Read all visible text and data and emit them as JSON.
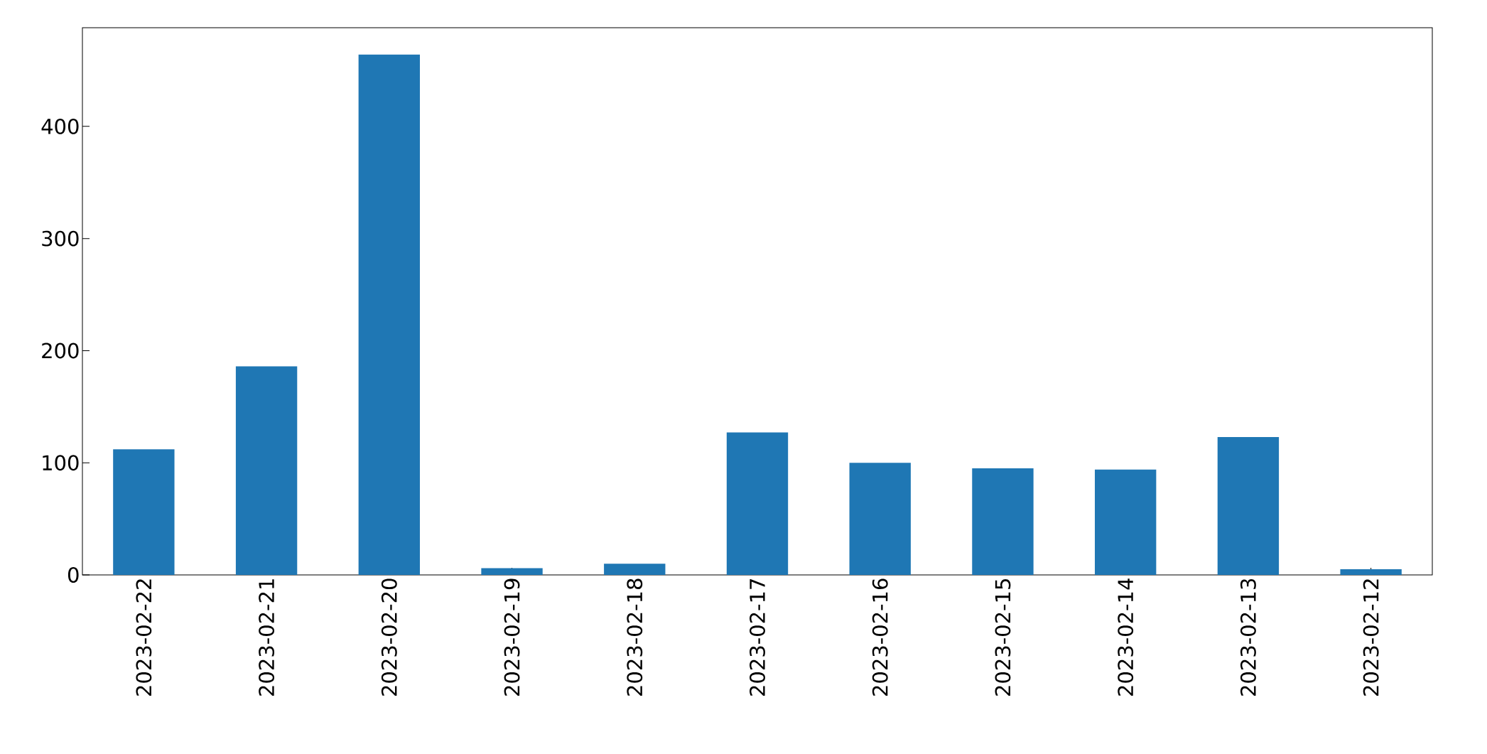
{
  "chart_data": {
    "type": "bar",
    "categories": [
      "2023-02-22",
      "2023-02-21",
      "2023-02-20",
      "2023-02-19",
      "2023-02-18",
      "2023-02-17",
      "2023-02-16",
      "2023-02-15",
      "2023-02-14",
      "2023-02-13",
      "2023-02-12"
    ],
    "values": [
      112,
      186,
      464,
      6,
      10,
      127,
      100,
      95,
      94,
      123,
      5
    ],
    "color": "#1f77b4",
    "ylim": [
      0,
      488
    ],
    "yticks": [
      0,
      100,
      200,
      300,
      400
    ]
  }
}
